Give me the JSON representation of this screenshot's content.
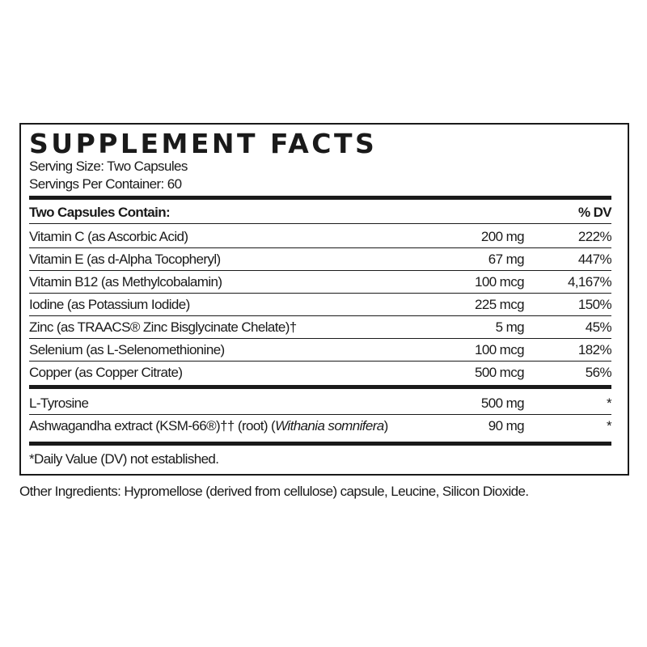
{
  "title": "SUPPLEMENT FACTS",
  "serving_size": "Serving Size: Two Capsules",
  "servings_per_container": "Servings Per Container: 60",
  "header": {
    "label": "Two Capsules Contain:",
    "dv": "% DV"
  },
  "nutrients": [
    {
      "name": "Vitamin C (as Ascorbic Acid)",
      "amount": "200 mg",
      "dv": "222%"
    },
    {
      "name": "Vitamin E (as d-Alpha Tocopheryl)",
      "amount": "67 mg",
      "dv": "447%"
    },
    {
      "name": "Vitamin B12 (as Methylcobalamin)",
      "amount": "100 mcg",
      "dv": "4,167%"
    },
    {
      "name": "Iodine (as Potassium Iodide)",
      "amount": "225 mcg",
      "dv": "150%"
    },
    {
      "name": "Zinc (as TRAACS® Zinc Bisglycinate Chelate)†",
      "amount": "5 mg",
      "dv": "45%"
    },
    {
      "name": "Selenium (as L-Selenomethionine)",
      "amount": "100 mcg",
      "dv": "182%"
    },
    {
      "name": "Copper (as Copper Citrate)",
      "amount": "500 mcg",
      "dv": "56%"
    }
  ],
  "other_ingredients_rows": [
    {
      "name": "L-Tyrosine",
      "amount": "500 mg",
      "dv": "*"
    },
    {
      "name": "Ashwagandha extract (KSM-66®)†† (root) (",
      "name_italic": "Withania somnifera",
      "name_end": ")",
      "amount": "90 mg",
      "dv": "*"
    }
  ],
  "footnote": "*Daily Value (DV) not established.",
  "other_ingredients": "Other Ingredients: Hypromellose (derived from cellulose) capsule, Leucine, Silicon Dioxide."
}
